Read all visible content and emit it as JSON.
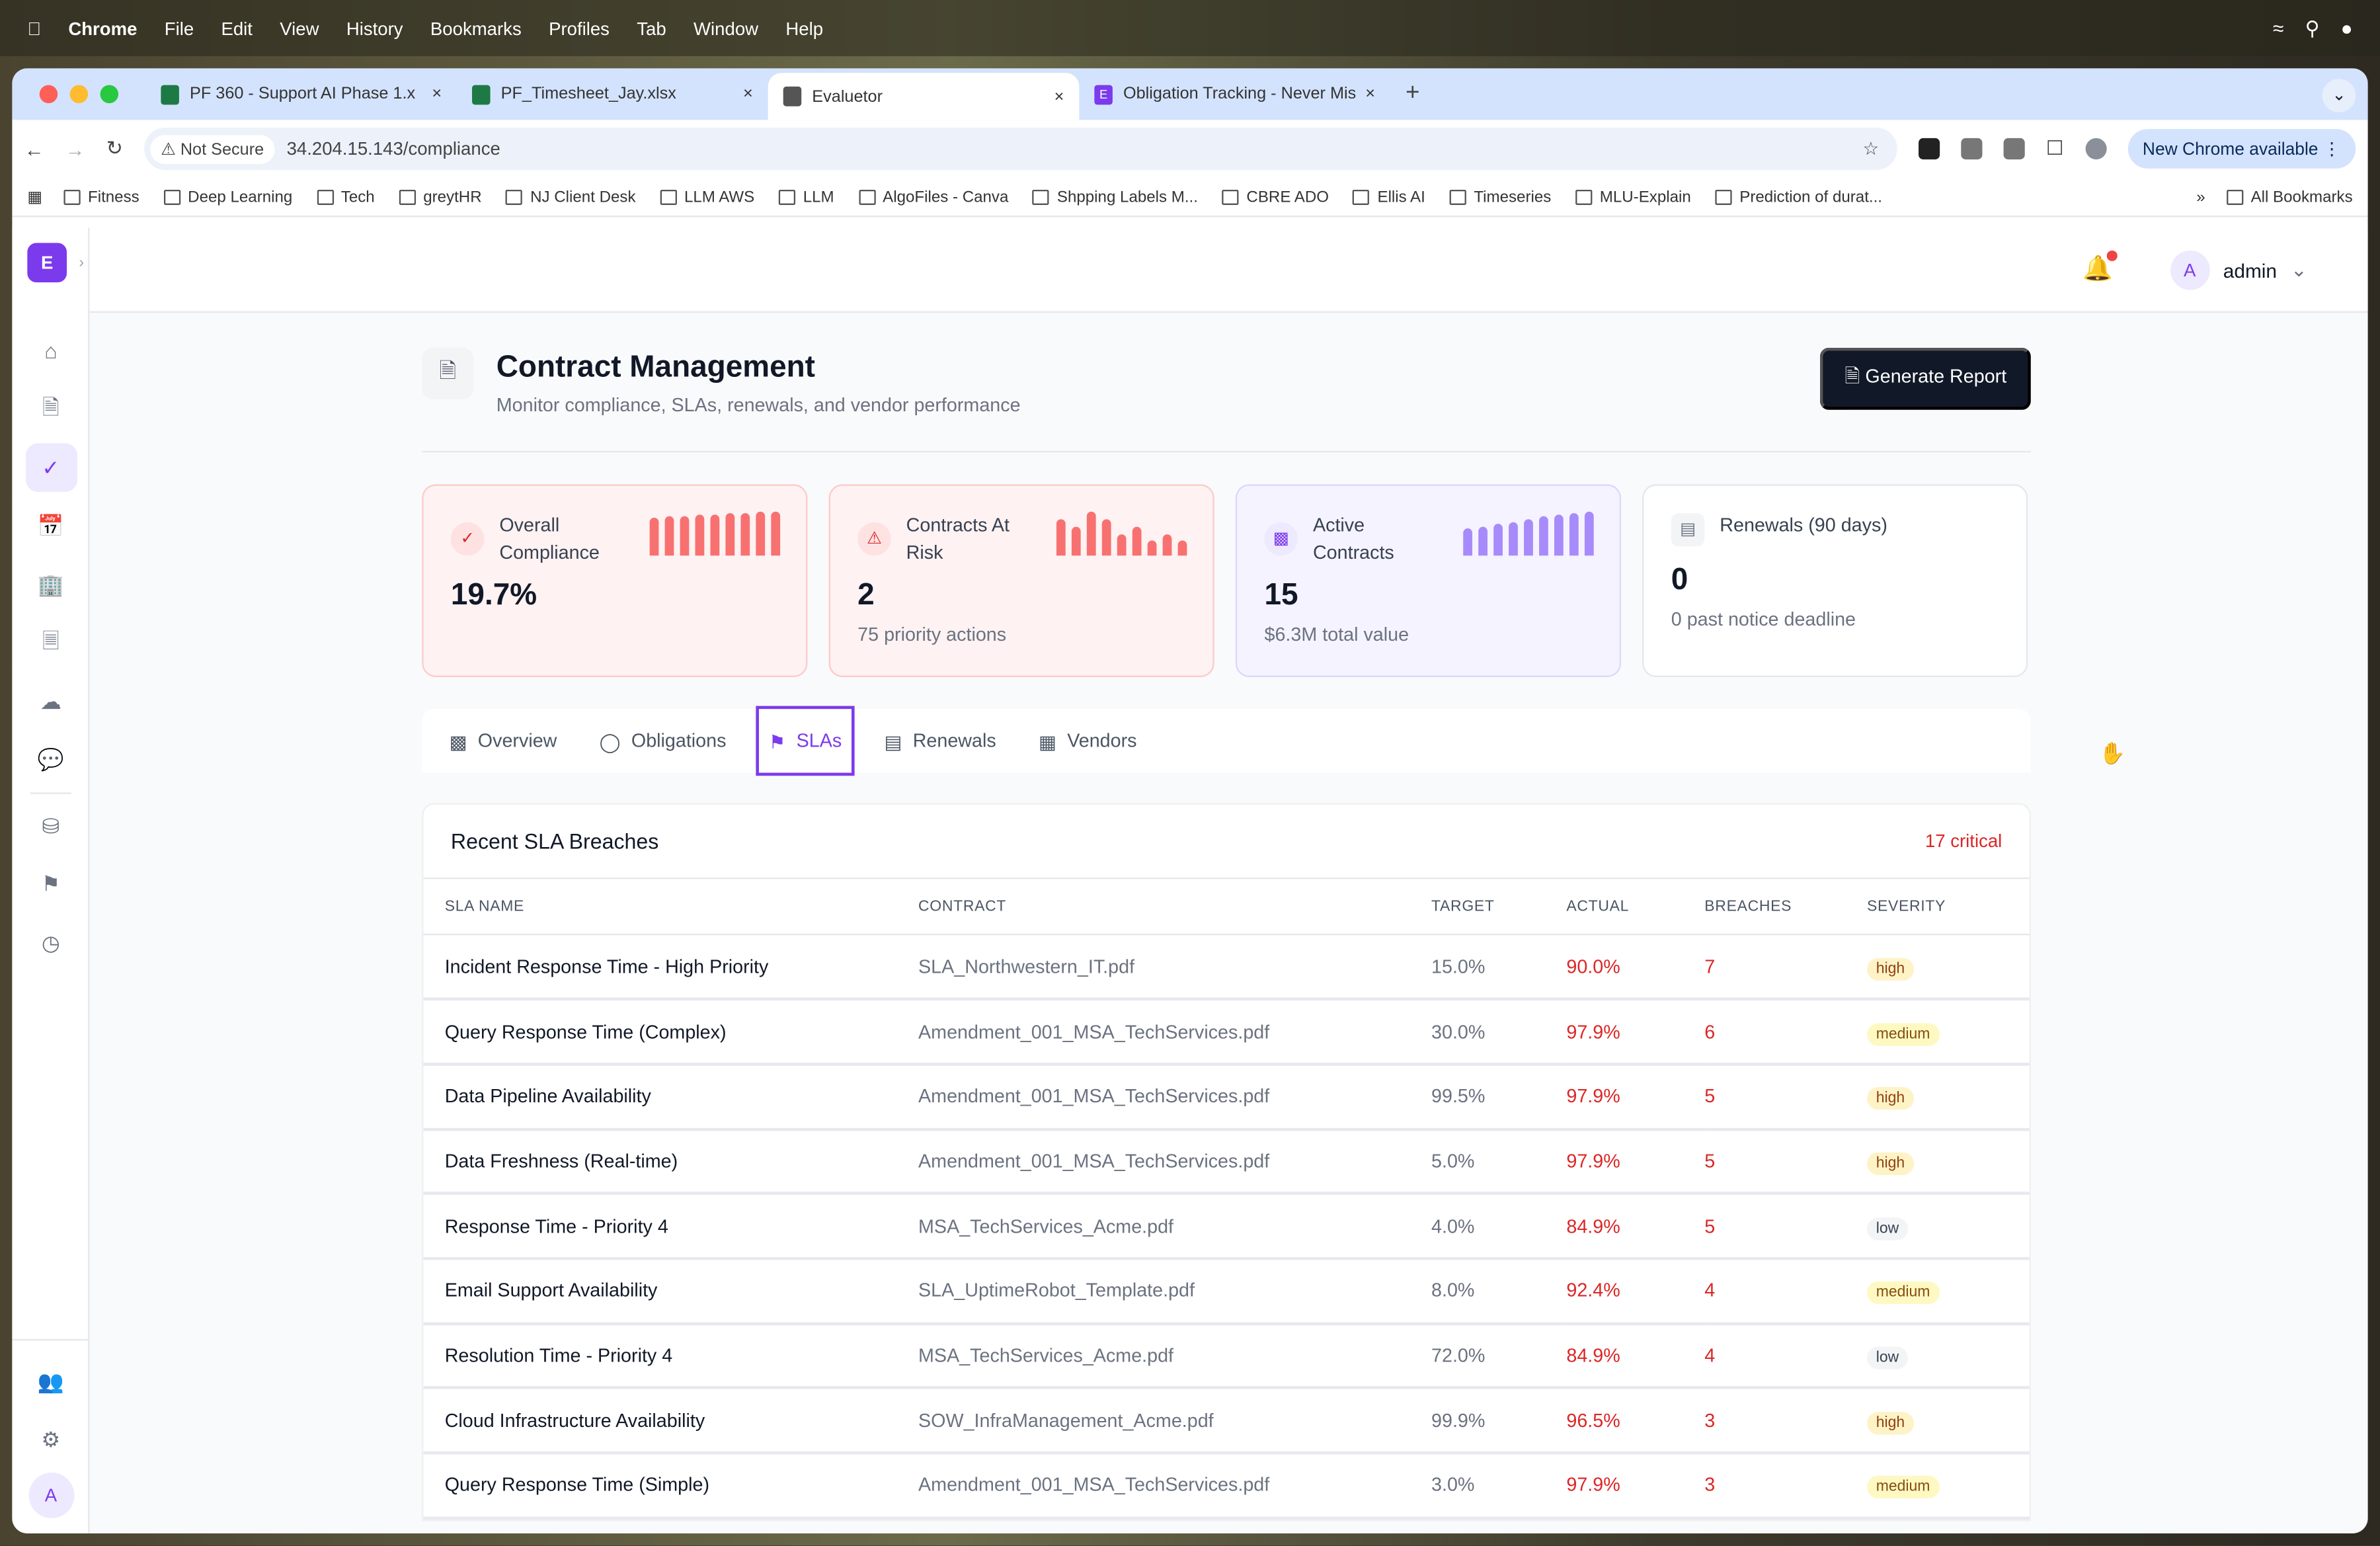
{
  "menubar": {
    "app": "Chrome",
    "items": [
      "File",
      "Edit",
      "View",
      "History",
      "Bookmarks",
      "Profiles",
      "Tab",
      "Window",
      "Help"
    ]
  },
  "browser": {
    "tabs": [
      {
        "title": "PF 360 - Support AI Phase 1.x",
        "icon": "excel-icon",
        "color": "#1e7a45"
      },
      {
        "title": "PF_Timesheet_Jay.xlsx",
        "icon": "excel-icon",
        "color": "#1e7a45"
      },
      {
        "title": "Evaluetor",
        "icon": "globe-icon",
        "color": "#555555"
      },
      {
        "title": "Obligation Tracking - Never Miss",
        "icon": "e-icon",
        "color": "#7c3aed"
      }
    ],
    "security": "Not Secure",
    "url": "34.204.15.143/compliance",
    "update": "New Chrome available",
    "bookmarks": [
      "Fitness",
      "Deep Learning",
      "Tech",
      "greytHR",
      "NJ Client Desk",
      "LLM AWS",
      "LLM",
      "AlgoFiles - Canva",
      "Shpping Labels M...",
      "CBRE ADO",
      "Ellis AI",
      "Timeseries",
      "MLU-Explain",
      "Prediction of durat..."
    ],
    "all_bookmarks": "All Bookmarks"
  },
  "app": {
    "logo": "E",
    "user_initial": "A",
    "user": "admin",
    "page": {
      "title": "Contract Management",
      "subtitle": "Monitor compliance, SLAs, renewals, and vendor performance",
      "report_button": "Generate Report"
    },
    "cards": [
      {
        "label": "Overall Compliance",
        "value": "19.7%",
        "sub": "",
        "spark": [
          0.86,
          0.88,
          0.9,
          0.92,
          0.94,
          0.96,
          0.98,
          0.99,
          1.0
        ],
        "color": "#f87171"
      },
      {
        "label": "Contracts At Risk",
        "value": "2",
        "sub": "75 priority actions",
        "spark": [
          0.83,
          0.67,
          1.0,
          0.83,
          0.5,
          0.67,
          0.33,
          0.5,
          0.33
        ],
        "color": "#f87171"
      },
      {
        "label": "Active Contracts",
        "value": "15",
        "sub": "$6.3M total value",
        "spark": [
          0.62,
          0.67,
          0.72,
          0.77,
          0.82,
          0.88,
          0.94,
          0.97,
          1.0
        ],
        "color": "#a78bfa"
      },
      {
        "label": "Renewals (90 days)",
        "value": "0",
        "sub": "0 past notice deadline"
      }
    ],
    "tabs": [
      "Overview",
      "Obligations",
      "SLAs",
      "Renewals",
      "Vendors"
    ],
    "active_tab": "SLAs",
    "sla": {
      "title": "Recent SLA Breaches",
      "critical": "17 critical",
      "columns": [
        "SLA NAME",
        "CONTRACT",
        "TARGET",
        "ACTUAL",
        "BREACHES",
        "SEVERITY"
      ],
      "rows": [
        [
          "Incident Response Time - High Priority",
          "SLA_Northwestern_IT.pdf",
          "15.0%",
          "90.0%",
          "7",
          "high"
        ],
        [
          "Query Response Time (Complex)",
          "Amendment_001_MSA_TechServices.pdf",
          "30.0%",
          "97.9%",
          "6",
          "medium"
        ],
        [
          "Data Pipeline Availability",
          "Amendment_001_MSA_TechServices.pdf",
          "99.5%",
          "97.9%",
          "5",
          "high"
        ],
        [
          "Data Freshness (Real-time)",
          "Amendment_001_MSA_TechServices.pdf",
          "5.0%",
          "97.9%",
          "5",
          "high"
        ],
        [
          "Response Time - Priority 4",
          "MSA_TechServices_Acme.pdf",
          "4.0%",
          "84.9%",
          "5",
          "low"
        ],
        [
          "Email Support Availability",
          "SLA_UptimeRobot_Template.pdf",
          "8.0%",
          "92.4%",
          "4",
          "medium"
        ],
        [
          "Resolution Time - Priority 4",
          "MSA_TechServices_Acme.pdf",
          "72.0%",
          "84.9%",
          "4",
          "low"
        ],
        [
          "Cloud Infrastructure Availability",
          "SOW_InfraManagement_Acme.pdf",
          "99.9%",
          "96.5%",
          "3",
          "high"
        ],
        [
          "Query Response Time (Simple)",
          "Amendment_001_MSA_TechServices.pdf",
          "3.0%",
          "97.9%",
          "3",
          "medium"
        ]
      ]
    }
  }
}
